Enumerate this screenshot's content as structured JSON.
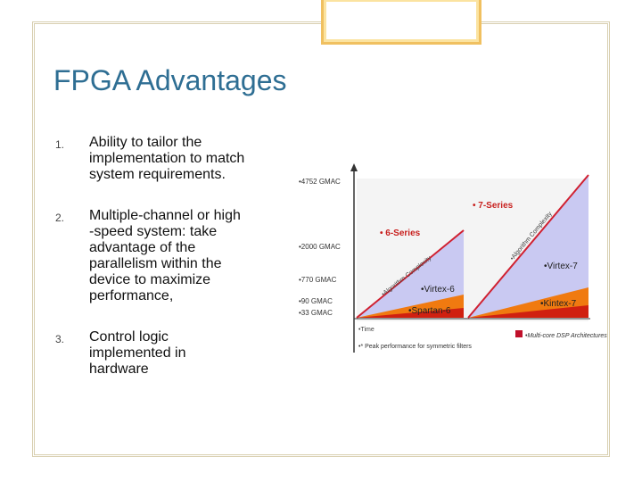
{
  "title": "FPGA Advantages",
  "items": [
    {
      "number": "1.",
      "lines": [
        "Ability to tailor the",
        "implementation to match",
        "system requirements."
      ]
    },
    {
      "number": "2.",
      "lines": [
        "Multiple-channel or high",
        "-speed system: take",
        "advantage of the",
        "parallelism within the",
        "device to maximize",
        "performance,"
      ]
    },
    {
      "number": "3.",
      "lines": [
        "Control logic",
        "implemented in",
        "hardware"
      ]
    }
  ],
  "figure": {
    "axis_labels": [
      "•4752 GMAC",
      "•2000 GMAC",
      "•770 GMAC",
      "•90 GMAC",
      "•33 GMAC"
    ],
    "series_6": "• 6-Series",
    "series_7": "• 7-Series",
    "complexity": "•Algorithm Complexity",
    "virtex7": "•Virtex-7",
    "kintex7": "•Kintex-7",
    "virtex6": "•Virtex-6",
    "spartan6": "•Spartan-6",
    "time": "•Time",
    "legend": "•Multi-core DSP Architectures",
    "footnote": "•* Peak performance for symmetric filters"
  }
}
